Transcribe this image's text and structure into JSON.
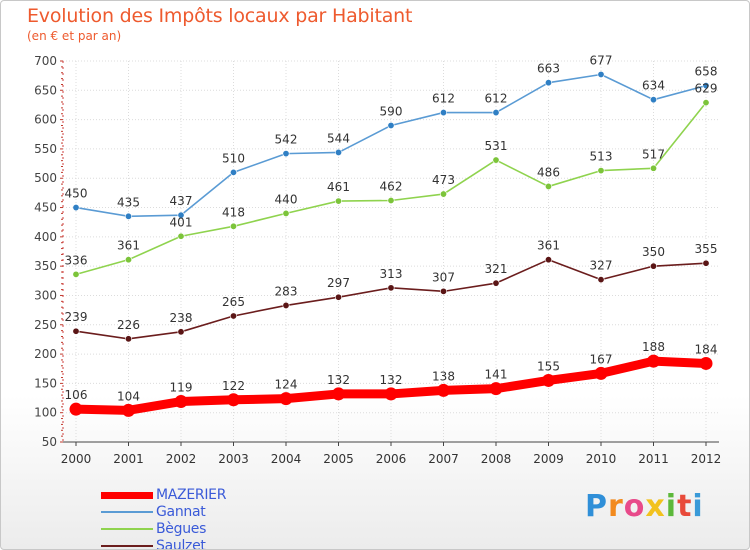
{
  "header": {
    "title": "Evolution des Impôts locaux par Habitant",
    "subtitle": "(en € et par an)"
  },
  "brand": {
    "letters": [
      "P",
      "r",
      "o",
      "x",
      "i",
      "t",
      "i"
    ],
    "colors": [
      "#2f8fd8",
      "#f28a1e",
      "#e84a8a",
      "#f2c21e",
      "#5cb83a",
      "#e84a3a",
      "#3a9ad8"
    ]
  },
  "chart_data": {
    "type": "line",
    "title": "Evolution des Impôts locaux par Habitant",
    "subtitle": "(en € et par an)",
    "xlabel": "",
    "ylabel": "",
    "x": [
      "2000",
      "2001",
      "2002",
      "2003",
      "2004",
      "2005",
      "2006",
      "2007",
      "2008",
      "2009",
      "2010",
      "2011",
      "2012"
    ],
    "ylim": [
      50,
      700
    ],
    "yticks": [
      "50",
      "100",
      "150",
      "200",
      "250",
      "300",
      "350",
      "400",
      "450",
      "500",
      "550",
      "600",
      "650",
      "700"
    ],
    "grid": true,
    "legend_position": "bottom-left",
    "series": [
      {
        "name": "MAZERIER",
        "color": "#ff0000",
        "labels": [
          "106",
          "104",
          "119",
          "122",
          "124",
          "132",
          "132",
          "138",
          "141",
          "155",
          "167",
          "188",
          "184"
        ],
        "values": [
          106,
          104,
          119,
          122,
          124,
          132,
          132,
          138,
          141,
          155,
          167,
          188,
          184
        ]
      },
      {
        "name": "Gannat",
        "color": "#5a9bd4",
        "marker": "#2f7fc4",
        "labels": [
          "450",
          "435",
          "437",
          "510",
          "542",
          "544",
          "590",
          "612",
          "612",
          "663",
          "677",
          "634",
          "658"
        ],
        "values": [
          450,
          435,
          437,
          510,
          542,
          544,
          590,
          612,
          612,
          663,
          677,
          634,
          658
        ]
      },
      {
        "name": "Bègues",
        "color": "#8fd34e",
        "marker": "#7cc43a",
        "labels": [
          "336",
          "361",
          "401",
          "418",
          "440",
          "461",
          "462",
          "473",
          "531",
          "486",
          "513",
          "517",
          "629"
        ],
        "values": [
          336,
          361,
          401,
          418,
          440,
          461,
          462,
          473,
          531,
          486,
          513,
          517,
          629
        ]
      },
      {
        "name": "Saulzet",
        "color": "#6b1d1d",
        "marker": "#5a1515",
        "labels": [
          "239",
          "226",
          "238",
          "265",
          "283",
          "297",
          "313",
          "307",
          "321",
          "361",
          "327",
          "350",
          "355"
        ],
        "values": [
          239,
          226,
          238,
          265,
          283,
          297,
          313,
          307,
          321,
          361,
          327,
          350,
          355
        ]
      }
    ]
  }
}
